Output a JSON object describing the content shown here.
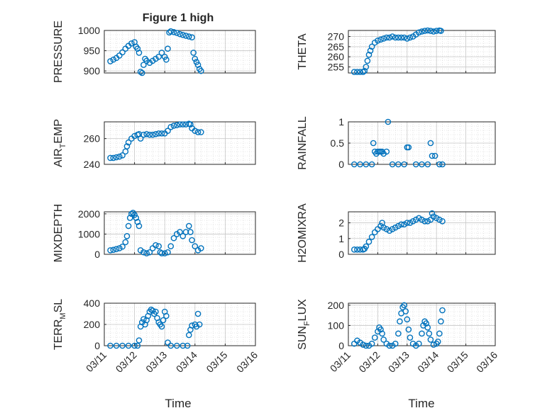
{
  "figure": {
    "title": "Figure 1 high",
    "xlabel": "Time"
  },
  "chart_data": [
    {
      "type": "scatter",
      "ylabel": "PRESSURE",
      "ylim": [
        895,
        1000
      ],
      "yticks": [
        900,
        950,
        1000
      ],
      "xticks": [
        "03/11",
        "03/12",
        "03/13",
        "03/14",
        "03/15",
        "03/16"
      ],
      "xlim": [
        0,
        5
      ],
      "grid": true,
      "points": [
        [
          0.2,
          924
        ],
        [
          0.3,
          928
        ],
        [
          0.4,
          932
        ],
        [
          0.5,
          938
        ],
        [
          0.6,
          946
        ],
        [
          0.7,
          955
        ],
        [
          0.8,
          962
        ],
        [
          0.9,
          968
        ],
        [
          1.0,
          971
        ],
        [
          1.05,
          960
        ],
        [
          1.1,
          955
        ],
        [
          1.15,
          945
        ],
        [
          1.2,
          898
        ],
        [
          1.25,
          895
        ],
        [
          1.3,
          915
        ],
        [
          1.35,
          930
        ],
        [
          1.4,
          925
        ],
        [
          1.5,
          920
        ],
        [
          1.6,
          925
        ],
        [
          1.7,
          930
        ],
        [
          1.8,
          935
        ],
        [
          1.9,
          945
        ],
        [
          2.0,
          935
        ],
        [
          2.05,
          928
        ],
        [
          2.1,
          955
        ],
        [
          2.15,
          995
        ],
        [
          2.2,
          998
        ],
        [
          2.3,
          996
        ],
        [
          2.4,
          994
        ],
        [
          2.5,
          991
        ],
        [
          2.6,
          989
        ],
        [
          2.7,
          987
        ],
        [
          2.8,
          985
        ],
        [
          2.9,
          983
        ],
        [
          2.95,
          945
        ],
        [
          3.0,
          930
        ],
        [
          3.05,
          922
        ],
        [
          3.1,
          915
        ],
        [
          3.15,
          905
        ],
        [
          3.2,
          900
        ]
      ]
    },
    {
      "type": "scatter",
      "ylabel": "THETA",
      "ylim": [
        252,
        273
      ],
      "yticks": [
        255,
        260,
        265,
        270
      ],
      "xticks": [
        "03/11",
        "03/12",
        "03/13",
        "03/14",
        "03/15",
        "03/16"
      ],
      "xlim": [
        0,
        5
      ],
      "grid": true,
      "points": [
        [
          0.2,
          252.5
        ],
        [
          0.3,
          252.5
        ],
        [
          0.4,
          252.5
        ],
        [
          0.5,
          252.5
        ],
        [
          0.55,
          253
        ],
        [
          0.6,
          255
        ],
        [
          0.65,
          258
        ],
        [
          0.7,
          261
        ],
        [
          0.75,
          263
        ],
        [
          0.8,
          265
        ],
        [
          0.9,
          267
        ],
        [
          1.0,
          268
        ],
        [
          1.1,
          268.5
        ],
        [
          1.2,
          269
        ],
        [
          1.3,
          269.5
        ],
        [
          1.4,
          269.5
        ],
        [
          1.5,
          270
        ],
        [
          1.6,
          269.5
        ],
        [
          1.7,
          269.5
        ],
        [
          1.8,
          269.5
        ],
        [
          1.9,
          269.5
        ],
        [
          2.0,
          269
        ],
        [
          2.1,
          269.5
        ],
        [
          2.2,
          270
        ],
        [
          2.3,
          271
        ],
        [
          2.4,
          272
        ],
        [
          2.5,
          272.5
        ],
        [
          2.6,
          272.8
        ],
        [
          2.7,
          273
        ],
        [
          2.8,
          272.8
        ],
        [
          2.9,
          272.5
        ],
        [
          3.0,
          272.8
        ],
        [
          3.1,
          273
        ],
        [
          3.15,
          272.8
        ]
      ]
    },
    {
      "type": "scatter",
      "ylabel": "AIR",
      "ylabel_sub": "T",
      "ylabel_suffix": "EMP",
      "ylim": [
        240,
        273
      ],
      "yticks": [
        240,
        260
      ],
      "xticks": [
        "03/11",
        "03/12",
        "03/13",
        "03/14",
        "03/15",
        "03/16"
      ],
      "xlim": [
        0,
        5
      ],
      "grid": true,
      "points": [
        [
          0.2,
          245
        ],
        [
          0.3,
          245
        ],
        [
          0.4,
          245.5
        ],
        [
          0.5,
          246
        ],
        [
          0.6,
          247
        ],
        [
          0.7,
          250
        ],
        [
          0.75,
          254
        ],
        [
          0.8,
          257
        ],
        [
          0.9,
          260
        ],
        [
          1.0,
          262
        ],
        [
          1.1,
          263
        ],
        [
          1.15,
          263.5
        ],
        [
          1.2,
          260
        ],
        [
          1.3,
          263
        ],
        [
          1.4,
          263.5
        ],
        [
          1.5,
          263
        ],
        [
          1.6,
          263
        ],
        [
          1.7,
          263.5
        ],
        [
          1.8,
          264
        ],
        [
          1.9,
          264
        ],
        [
          2.0,
          264
        ],
        [
          2.1,
          266
        ],
        [
          2.2,
          269
        ],
        [
          2.3,
          270
        ],
        [
          2.4,
          270.5
        ],
        [
          2.5,
          271
        ],
        [
          2.6,
          271
        ],
        [
          2.7,
          271
        ],
        [
          2.8,
          271.5
        ],
        [
          2.85,
          271
        ],
        [
          2.9,
          268
        ],
        [
          3.0,
          266
        ],
        [
          3.1,
          265
        ],
        [
          3.2,
          265
        ]
      ]
    },
    {
      "type": "scatter",
      "ylabel": "RAINFALL",
      "ylim": [
        0,
        1
      ],
      "yticks": [
        0,
        0.5,
        1
      ],
      "xticks": [
        "03/11",
        "03/12",
        "03/13",
        "03/14",
        "03/15",
        "03/16"
      ],
      "xlim": [
        0,
        5
      ],
      "grid": true,
      "points": [
        [
          0.2,
          0
        ],
        [
          0.4,
          0
        ],
        [
          0.6,
          0
        ],
        [
          0.8,
          0
        ],
        [
          0.85,
          0.5
        ],
        [
          0.9,
          0.3
        ],
        [
          0.95,
          0.25
        ],
        [
          1.0,
          0.3
        ],
        [
          1.05,
          0.3
        ],
        [
          1.1,
          0.3
        ],
        [
          1.15,
          0.3
        ],
        [
          1.2,
          0.25
        ],
        [
          1.3,
          0.3
        ],
        [
          1.35,
          1.0
        ],
        [
          1.5,
          0
        ],
        [
          1.7,
          0
        ],
        [
          1.9,
          0
        ],
        [
          2.0,
          0.4
        ],
        [
          2.05,
          0.4
        ],
        [
          2.3,
          0
        ],
        [
          2.5,
          0
        ],
        [
          2.7,
          0
        ],
        [
          2.8,
          0.5
        ],
        [
          2.85,
          0.2
        ],
        [
          2.95,
          0.2
        ],
        [
          3.1,
          0
        ],
        [
          3.2,
          0
        ]
      ]
    },
    {
      "type": "scatter",
      "ylabel": "MIXDEPTH",
      "ylim": [
        0,
        2100
      ],
      "yticks": [
        0,
        1000,
        2000
      ],
      "xticks": [
        "03/11",
        "03/12",
        "03/13",
        "03/14",
        "03/15",
        "03/16"
      ],
      "xlim": [
        0,
        5
      ],
      "grid": true,
      "points": [
        [
          0.2,
          200
        ],
        [
          0.3,
          220
        ],
        [
          0.4,
          260
        ],
        [
          0.5,
          300
        ],
        [
          0.6,
          380
        ],
        [
          0.7,
          600
        ],
        [
          0.75,
          900
        ],
        [
          0.8,
          1400
        ],
        [
          0.85,
          1800
        ],
        [
          0.9,
          2000
        ],
        [
          0.95,
          2050
        ],
        [
          1.0,
          1950
        ],
        [
          1.05,
          1800
        ],
        [
          1.1,
          1600
        ],
        [
          1.15,
          1400
        ],
        [
          1.2,
          200
        ],
        [
          1.3,
          100
        ],
        [
          1.4,
          50
        ],
        [
          1.5,
          100
        ],
        [
          1.6,
          300
        ],
        [
          1.7,
          450
        ],
        [
          1.8,
          400
        ],
        [
          1.85,
          100
        ],
        [
          1.9,
          50
        ],
        [
          2.0,
          50
        ],
        [
          2.1,
          100
        ],
        [
          2.2,
          400
        ],
        [
          2.3,
          800
        ],
        [
          2.4,
          1000
        ],
        [
          2.5,
          1100
        ],
        [
          2.6,
          900
        ],
        [
          2.7,
          1100
        ],
        [
          2.8,
          1400
        ],
        [
          2.85,
          1100
        ],
        [
          2.9,
          700
        ],
        [
          3.0,
          400
        ],
        [
          3.1,
          200
        ],
        [
          3.2,
          300
        ]
      ]
    },
    {
      "type": "scatter",
      "ylabel": "H2OMIXRA",
      "ylim": [
        0,
        2.7
      ],
      "yticks": [
        0,
        1,
        2
      ],
      "xticks": [
        "03/11",
        "03/12",
        "03/13",
        "03/14",
        "03/15",
        "03/16"
      ],
      "xlim": [
        0,
        5
      ],
      "grid": true,
      "points": [
        [
          0.2,
          0.3
        ],
        [
          0.3,
          0.3
        ],
        [
          0.4,
          0.3
        ],
        [
          0.5,
          0.3
        ],
        [
          0.55,
          0.35
        ],
        [
          0.6,
          0.5
        ],
        [
          0.7,
          0.8
        ],
        [
          0.8,
          1.1
        ],
        [
          0.9,
          1.4
        ],
        [
          1.0,
          1.6
        ],
        [
          1.1,
          1.8
        ],
        [
          1.15,
          2.0
        ],
        [
          1.2,
          1.7
        ],
        [
          1.3,
          1.6
        ],
        [
          1.4,
          1.5
        ],
        [
          1.5,
          1.6
        ],
        [
          1.6,
          1.7
        ],
        [
          1.7,
          1.8
        ],
        [
          1.8,
          1.9
        ],
        [
          1.9,
          1.9
        ],
        [
          2.0,
          2.0
        ],
        [
          2.1,
          2.0
        ],
        [
          2.2,
          2.1
        ],
        [
          2.3,
          2.2
        ],
        [
          2.4,
          2.3
        ],
        [
          2.5,
          2.2
        ],
        [
          2.6,
          2.1
        ],
        [
          2.7,
          2.1
        ],
        [
          2.8,
          2.2
        ],
        [
          2.85,
          2.6
        ],
        [
          2.9,
          2.4
        ],
        [
          3.0,
          2.3
        ],
        [
          3.1,
          2.2
        ],
        [
          3.2,
          2.1
        ]
      ]
    },
    {
      "type": "scatter",
      "ylabel": "TERR",
      "ylabel_sub": "M",
      "ylabel_suffix": "SL",
      "ylim": [
        0,
        400
      ],
      "yticks": [
        0,
        200,
        400
      ],
      "xticks": [
        "03/11",
        "03/12",
        "03/13",
        "03/14",
        "03/15",
        "03/16"
      ],
      "xlim": [
        0,
        5
      ],
      "grid": true,
      "points": [
        [
          0.2,
          0
        ],
        [
          0.4,
          0
        ],
        [
          0.6,
          0
        ],
        [
          0.8,
          0
        ],
        [
          1.0,
          0
        ],
        [
          1.1,
          0
        ],
        [
          1.15,
          50
        ],
        [
          1.2,
          180
        ],
        [
          1.25,
          220
        ],
        [
          1.3,
          250
        ],
        [
          1.35,
          200
        ],
        [
          1.4,
          240
        ],
        [
          1.45,
          280
        ],
        [
          1.5,
          320
        ],
        [
          1.55,
          340
        ],
        [
          1.6,
          330
        ],
        [
          1.65,
          300
        ],
        [
          1.7,
          320
        ],
        [
          1.75,
          260
        ],
        [
          1.8,
          220
        ],
        [
          1.85,
          200
        ],
        [
          1.9,
          180
        ],
        [
          1.95,
          240
        ],
        [
          2.0,
          320
        ],
        [
          2.05,
          280
        ],
        [
          2.1,
          30
        ],
        [
          2.2,
          0
        ],
        [
          2.4,
          0
        ],
        [
          2.6,
          0
        ],
        [
          2.75,
          0
        ],
        [
          2.8,
          100
        ],
        [
          2.85,
          150
        ],
        [
          2.9,
          190
        ],
        [
          3.0,
          200
        ],
        [
          3.05,
          180
        ],
        [
          3.1,
          300
        ],
        [
          3.15,
          200
        ]
      ]
    },
    {
      "type": "scatter",
      "ylabel": "SUN",
      "ylabel_sub": "F",
      "ylabel_suffix": "LUX",
      "ylim": [
        0,
        210
      ],
      "yticks": [
        0,
        100,
        200
      ],
      "xticks": [
        "03/11",
        "03/12",
        "03/13",
        "03/14",
        "03/15",
        "03/16"
      ],
      "xlim": [
        0,
        5
      ],
      "grid": true,
      "points": [
        [
          0.2,
          10
        ],
        [
          0.3,
          25
        ],
        [
          0.4,
          15
        ],
        [
          0.5,
          5
        ],
        [
          0.6,
          0
        ],
        [
          0.7,
          0
        ],
        [
          0.8,
          10
        ],
        [
          0.9,
          40
        ],
        [
          1.0,
          70
        ],
        [
          1.05,
          90
        ],
        [
          1.1,
          80
        ],
        [
          1.15,
          60
        ],
        [
          1.2,
          30
        ],
        [
          1.3,
          10
        ],
        [
          1.4,
          0
        ],
        [
          1.5,
          0
        ],
        [
          1.6,
          10
        ],
        [
          1.7,
          60
        ],
        [
          1.75,
          120
        ],
        [
          1.8,
          160
        ],
        [
          1.85,
          190
        ],
        [
          1.9,
          200
        ],
        [
          1.95,
          170
        ],
        [
          2.0,
          130
        ],
        [
          2.05,
          80
        ],
        [
          2.1,
          40
        ],
        [
          2.2,
          10
        ],
        [
          2.3,
          0
        ],
        [
          2.4,
          10
        ],
        [
          2.5,
          60
        ],
        [
          2.55,
          100
        ],
        [
          2.6,
          120
        ],
        [
          2.65,
          110
        ],
        [
          2.7,
          90
        ],
        [
          2.75,
          60
        ],
        [
          2.8,
          30
        ],
        [
          2.9,
          5
        ],
        [
          3.0,
          10
        ],
        [
          3.05,
          20
        ],
        [
          3.1,
          60
        ],
        [
          3.15,
          120
        ],
        [
          3.2,
          175
        ]
      ]
    }
  ],
  "colors": {
    "marker": "#0072bd",
    "axis": "#262626",
    "grid": "#d0d0d0"
  }
}
